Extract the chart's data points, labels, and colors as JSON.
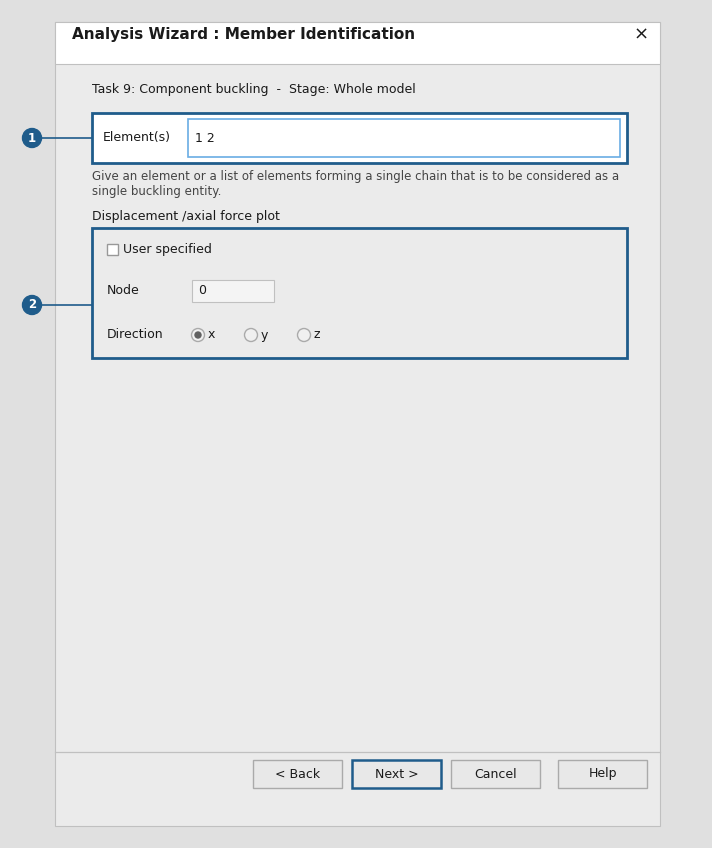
{
  "title": "Analysis Wizard : Member Identification",
  "close_symbol": "×",
  "task_label": "Task 9: Component buckling  -  Stage: Whole model",
  "element_label": "Element(s)",
  "element_value": "1 2",
  "hint_line1": "Give an element or a list of elements forming a single chain that is to be considered as a",
  "hint_line2": "single buckling entity.",
  "disp_section_label": "Displacement /axial force plot",
  "user_specified_label": "User specified",
  "node_label": "Node",
  "node_value": "0",
  "direction_label": "Direction",
  "direction_options": [
    "x",
    "y",
    "z"
  ],
  "direction_selected": 0,
  "btn_back": "< Back",
  "btn_next": "Next >",
  "btn_cancel": "Cancel",
  "btn_help": "Help",
  "bg_color": "#e0e0e0",
  "dialog_bg": "#ebebeb",
  "blue_border": "#1f5c8b",
  "text_color": "#1a1a1a",
  "hint_color": "#444444",
  "circle_bg": "#1f5c8b",
  "circle_text": "#ffffff",
  "separator_color": "#c0c0c0",
  "input_bg": "#ffffff",
  "node_input_bg": "#f4f4f4",
  "btn_bg": "#e8e8e8",
  "btn_border": "#aaaaaa",
  "radio_fill": "#cccccc",
  "radio_dot": "#555555"
}
